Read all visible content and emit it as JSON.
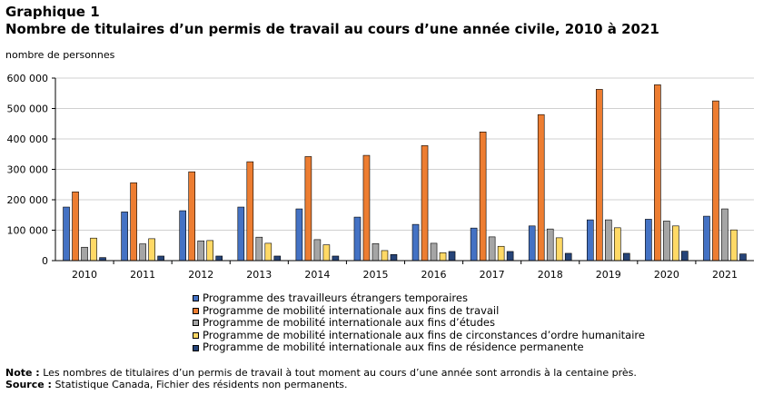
{
  "header": {
    "label": "Graphique 1",
    "title": "Nombre de titulaires d’un permis de travail au cours d’une année civile, 2010 à 2021",
    "unit_label": "nombre de personnes"
  },
  "chart_data": {
    "type": "bar",
    "title": "Nombre de titulaires d’un permis de travail au cours d’une année civile, 2010 à 2021",
    "ylabel": "nombre de personnes",
    "xlabel": "",
    "ylim": [
      0,
      600000
    ],
    "yticks": [
      0,
      100000,
      200000,
      300000,
      400000,
      500000,
      600000
    ],
    "ytick_labels": [
      "0",
      "100 000",
      "200 000",
      "300 000",
      "400 000",
      "500 000",
      "600 000"
    ],
    "grid": true,
    "legend_position": "bottom",
    "categories": [
      "2010",
      "2011",
      "2012",
      "2013",
      "2014",
      "2015",
      "2016",
      "2017",
      "2018",
      "2019",
      "2020",
      "2021"
    ],
    "series": [
      {
        "name": "Programme des travailleurs étrangers temporaires",
        "color": "#4472C4",
        "values": [
          176000,
          160000,
          164000,
          176000,
          170000,
          143000,
          119000,
          107000,
          114000,
          134000,
          136000,
          146000
        ]
      },
      {
        "name": "Programme de mobilité internationale aux fins de travail",
        "color": "#ED7D31",
        "values": [
          226000,
          256000,
          292000,
          325000,
          342000,
          346000,
          378000,
          423000,
          480000,
          563000,
          578000,
          525000
        ]
      },
      {
        "name": "Programme de mobilité internationale aux fins d’études",
        "color": "#A5A5A5",
        "values": [
          44000,
          55000,
          65000,
          77000,
          69000,
          56000,
          57000,
          78000,
          104000,
          134000,
          130000,
          170000
        ]
      },
      {
        "name": "Programme de mobilité internationale aux fins de circonstances d’ordre humanitaire",
        "color": "#FFD966",
        "values": [
          74000,
          72000,
          66000,
          57000,
          52000,
          33000,
          26000,
          47000,
          75000,
          108000,
          114000,
          101000
        ]
      },
      {
        "name": "Programme de mobilité internationale aux fins de résidence permanente",
        "color": "#264478",
        "values": [
          10000,
          15000,
          15000,
          15000,
          15000,
          20000,
          30000,
          30000,
          24000,
          24000,
          31000,
          22000
        ]
      }
    ]
  },
  "notes": {
    "note_label": "Note :",
    "note_text": "Les nombres de titulaires d’un permis de travail à tout moment au cours d’une année sont arrondis à la centaine près.",
    "source_label": "Source :",
    "source_text": "Statistique Canada, Fichier des résidents non permanents."
  }
}
